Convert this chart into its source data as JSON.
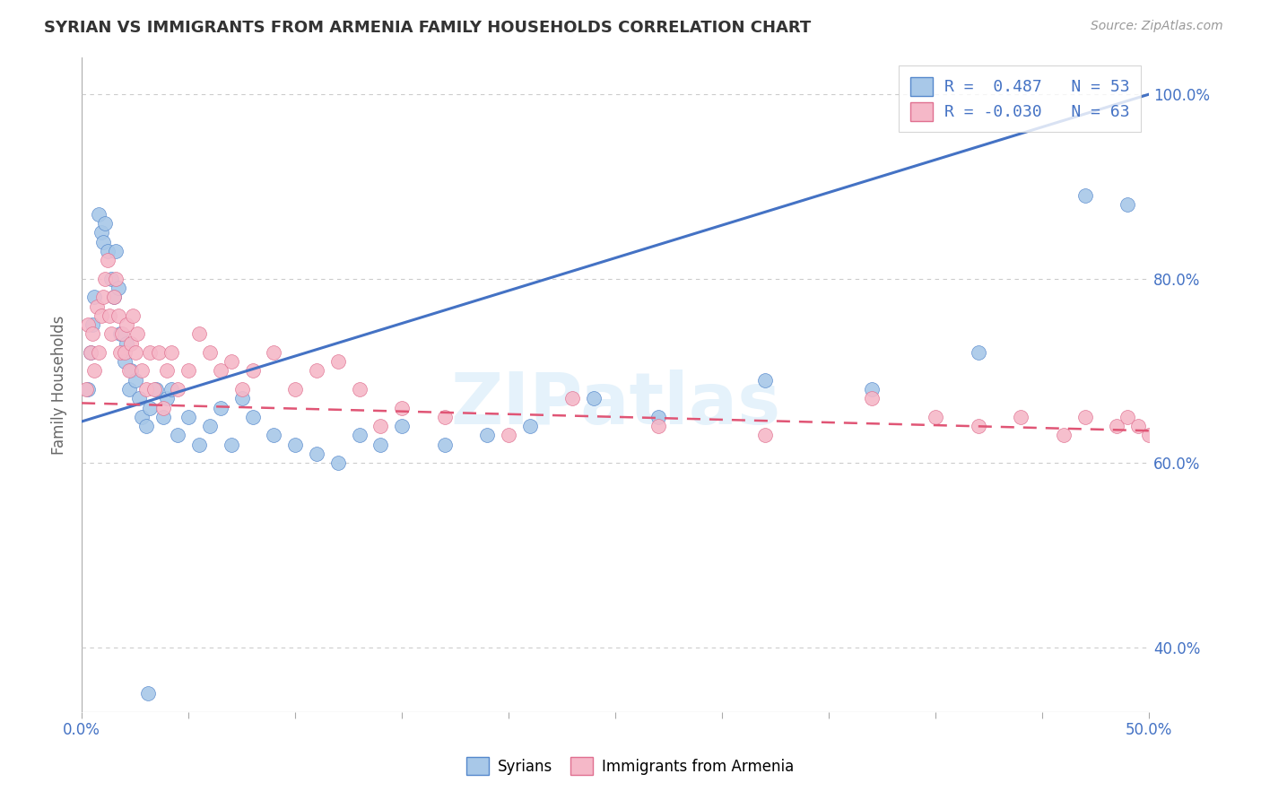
{
  "title": "SYRIAN VS IMMIGRANTS FROM ARMENIA FAMILY HOUSEHOLDS CORRELATION CHART",
  "source": "Source: ZipAtlas.com",
  "ylabel": "Family Households",
  "xlim": [
    0.0,
    50.0
  ],
  "ylim": [
    33.0,
    104.0
  ],
  "xtick_minor": [
    0,
    5,
    10,
    15,
    20,
    25,
    30,
    35,
    40,
    45,
    50
  ],
  "xtick_label_positions": [
    0.0,
    50.0
  ],
  "xtick_labels": [
    "0.0%",
    "50.0%"
  ],
  "yticks": [
    40.0,
    60.0,
    80.0,
    100.0
  ],
  "legend_labels": [
    "Syrians",
    "Immigrants from Armenia"
  ],
  "blue_R": 0.487,
  "blue_N": 53,
  "pink_R": -0.03,
  "pink_N": 63,
  "blue_color": "#a8c8e8",
  "pink_color": "#f5b8c8",
  "blue_edge_color": "#5588cc",
  "pink_edge_color": "#e07090",
  "blue_line_color": "#4472c4",
  "pink_line_color": "#e05575",
  "watermark": "ZIPatlas",
  "blue_scatter_x": [
    0.3,
    0.4,
    0.5,
    0.6,
    0.8,
    0.9,
    1.0,
    1.1,
    1.2,
    1.4,
    1.5,
    1.6,
    1.7,
    1.8,
    2.0,
    2.1,
    2.2,
    2.3,
    2.5,
    2.7,
    2.8,
    3.0,
    3.1,
    3.2,
    3.5,
    3.8,
    4.0,
    4.2,
    4.5,
    5.0,
    5.5,
    6.0,
    6.5,
    7.0,
    7.5,
    8.0,
    9.0,
    10.0,
    11.0,
    12.0,
    13.0,
    14.0,
    15.0,
    17.0,
    19.0,
    21.0,
    24.0,
    27.0,
    32.0,
    37.0,
    42.0,
    47.0,
    49.0
  ],
  "blue_scatter_y": [
    68,
    72,
    75,
    78,
    87,
    85,
    84,
    86,
    83,
    80,
    78,
    83,
    79,
    74,
    71,
    73,
    68,
    70,
    69,
    67,
    65,
    64,
    35,
    66,
    68,
    65,
    67,
    68,
    63,
    65,
    62,
    64,
    66,
    62,
    67,
    65,
    63,
    62,
    61,
    60,
    63,
    62,
    64,
    62,
    63,
    64,
    67,
    65,
    69,
    68,
    72,
    89,
    88
  ],
  "pink_scatter_x": [
    0.2,
    0.3,
    0.4,
    0.5,
    0.6,
    0.7,
    0.8,
    0.9,
    1.0,
    1.1,
    1.2,
    1.3,
    1.4,
    1.5,
    1.6,
    1.7,
    1.8,
    1.9,
    2.0,
    2.1,
    2.2,
    2.3,
    2.4,
    2.5,
    2.6,
    2.8,
    3.0,
    3.2,
    3.4,
    3.6,
    3.8,
    4.0,
    4.2,
    4.5,
    5.0,
    5.5,
    6.0,
    6.5,
    7.0,
    7.5,
    8.0,
    9.0,
    10.0,
    11.0,
    12.0,
    13.0,
    14.0,
    15.0,
    17.0,
    20.0,
    23.0,
    27.0,
    32.0,
    37.0,
    40.0,
    42.0,
    44.0,
    46.0,
    47.0,
    48.5,
    49.0,
    49.5,
    50.0
  ],
  "pink_scatter_y": [
    68,
    75,
    72,
    74,
    70,
    77,
    72,
    76,
    78,
    80,
    82,
    76,
    74,
    78,
    80,
    76,
    72,
    74,
    72,
    75,
    70,
    73,
    76,
    72,
    74,
    70,
    68,
    72,
    68,
    72,
    66,
    70,
    72,
    68,
    70,
    74,
    72,
    70,
    71,
    68,
    70,
    72,
    68,
    70,
    71,
    68,
    64,
    66,
    65,
    63,
    67,
    64,
    63,
    67,
    65,
    64,
    65,
    63,
    65,
    64,
    65,
    64,
    63
  ],
  "blue_line_x0": 0.0,
  "blue_line_y0": 64.5,
  "blue_line_x1": 50.0,
  "blue_line_y1": 100.0,
  "pink_line_x0": 0.0,
  "pink_line_y0": 66.5,
  "pink_line_x1": 50.0,
  "pink_line_y1": 63.5
}
